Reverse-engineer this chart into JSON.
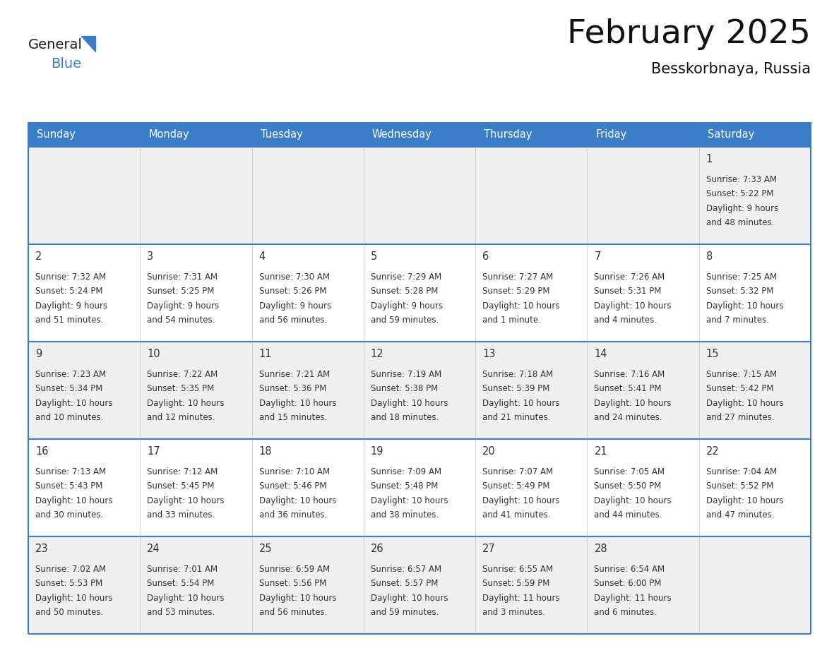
{
  "title": "February 2025",
  "subtitle": "Besskorbnaya, Russia",
  "header_color": "#3A7DC9",
  "header_text_color": "#FFFFFF",
  "day_names": [
    "Sunday",
    "Monday",
    "Tuesday",
    "Wednesday",
    "Thursday",
    "Friday",
    "Saturday"
  ],
  "border_color": "#3A7DC9",
  "row_separator_color": "#3A7DC9",
  "col_separator_color": "#CCCCCC",
  "day_number_color": "#333333",
  "info_text_color": "#333333",
  "cell_bg_white": "#FFFFFF",
  "cell_bg_gray": "#F0F0F0",
  "logo_general_color": "#1a1a1a",
  "logo_blue_color": "#3A7DC9",
  "logo_triangle_color": "#3A7DC9",
  "weeks": [
    [
      {
        "day": null
      },
      {
        "day": null
      },
      {
        "day": null
      },
      {
        "day": null
      },
      {
        "day": null
      },
      {
        "day": null
      },
      {
        "day": 1,
        "sunrise": "7:33 AM",
        "sunset": "5:22 PM",
        "daylight": "9 hours and 48 minutes."
      }
    ],
    [
      {
        "day": 2,
        "sunrise": "7:32 AM",
        "sunset": "5:24 PM",
        "daylight": "9 hours and 51 minutes."
      },
      {
        "day": 3,
        "sunrise": "7:31 AM",
        "sunset": "5:25 PM",
        "daylight": "9 hours and 54 minutes."
      },
      {
        "day": 4,
        "sunrise": "7:30 AM",
        "sunset": "5:26 PM",
        "daylight": "9 hours and 56 minutes."
      },
      {
        "day": 5,
        "sunrise": "7:29 AM",
        "sunset": "5:28 PM",
        "daylight": "9 hours and 59 minutes."
      },
      {
        "day": 6,
        "sunrise": "7:27 AM",
        "sunset": "5:29 PM",
        "daylight": "10 hours and 1 minute."
      },
      {
        "day": 7,
        "sunrise": "7:26 AM",
        "sunset": "5:31 PM",
        "daylight": "10 hours and 4 minutes."
      },
      {
        "day": 8,
        "sunrise": "7:25 AM",
        "sunset": "5:32 PM",
        "daylight": "10 hours and 7 minutes."
      }
    ],
    [
      {
        "day": 9,
        "sunrise": "7:23 AM",
        "sunset": "5:34 PM",
        "daylight": "10 hours and 10 minutes."
      },
      {
        "day": 10,
        "sunrise": "7:22 AM",
        "sunset": "5:35 PM",
        "daylight": "10 hours and 12 minutes."
      },
      {
        "day": 11,
        "sunrise": "7:21 AM",
        "sunset": "5:36 PM",
        "daylight": "10 hours and 15 minutes."
      },
      {
        "day": 12,
        "sunrise": "7:19 AM",
        "sunset": "5:38 PM",
        "daylight": "10 hours and 18 minutes."
      },
      {
        "day": 13,
        "sunrise": "7:18 AM",
        "sunset": "5:39 PM",
        "daylight": "10 hours and 21 minutes."
      },
      {
        "day": 14,
        "sunrise": "7:16 AM",
        "sunset": "5:41 PM",
        "daylight": "10 hours and 24 minutes."
      },
      {
        "day": 15,
        "sunrise": "7:15 AM",
        "sunset": "5:42 PM",
        "daylight": "10 hours and 27 minutes."
      }
    ],
    [
      {
        "day": 16,
        "sunrise": "7:13 AM",
        "sunset": "5:43 PM",
        "daylight": "10 hours and 30 minutes."
      },
      {
        "day": 17,
        "sunrise": "7:12 AM",
        "sunset": "5:45 PM",
        "daylight": "10 hours and 33 minutes."
      },
      {
        "day": 18,
        "sunrise": "7:10 AM",
        "sunset": "5:46 PM",
        "daylight": "10 hours and 36 minutes."
      },
      {
        "day": 19,
        "sunrise": "7:09 AM",
        "sunset": "5:48 PM",
        "daylight": "10 hours and 38 minutes."
      },
      {
        "day": 20,
        "sunrise": "7:07 AM",
        "sunset": "5:49 PM",
        "daylight": "10 hours and 41 minutes."
      },
      {
        "day": 21,
        "sunrise": "7:05 AM",
        "sunset": "5:50 PM",
        "daylight": "10 hours and 44 minutes."
      },
      {
        "day": 22,
        "sunrise": "7:04 AM",
        "sunset": "5:52 PM",
        "daylight": "10 hours and 47 minutes."
      }
    ],
    [
      {
        "day": 23,
        "sunrise": "7:02 AM",
        "sunset": "5:53 PM",
        "daylight": "10 hours and 50 minutes."
      },
      {
        "day": 24,
        "sunrise": "7:01 AM",
        "sunset": "5:54 PM",
        "daylight": "10 hours and 53 minutes."
      },
      {
        "day": 25,
        "sunrise": "6:59 AM",
        "sunset": "5:56 PM",
        "daylight": "10 hours and 56 minutes."
      },
      {
        "day": 26,
        "sunrise": "6:57 AM",
        "sunset": "5:57 PM",
        "daylight": "10 hours and 59 minutes."
      },
      {
        "day": 27,
        "sunrise": "6:55 AM",
        "sunset": "5:59 PM",
        "daylight": "11 hours and 3 minutes."
      },
      {
        "day": 28,
        "sunrise": "6:54 AM",
        "sunset": "6:00 PM",
        "daylight": "11 hours and 6 minutes."
      },
      {
        "day": null
      }
    ]
  ]
}
